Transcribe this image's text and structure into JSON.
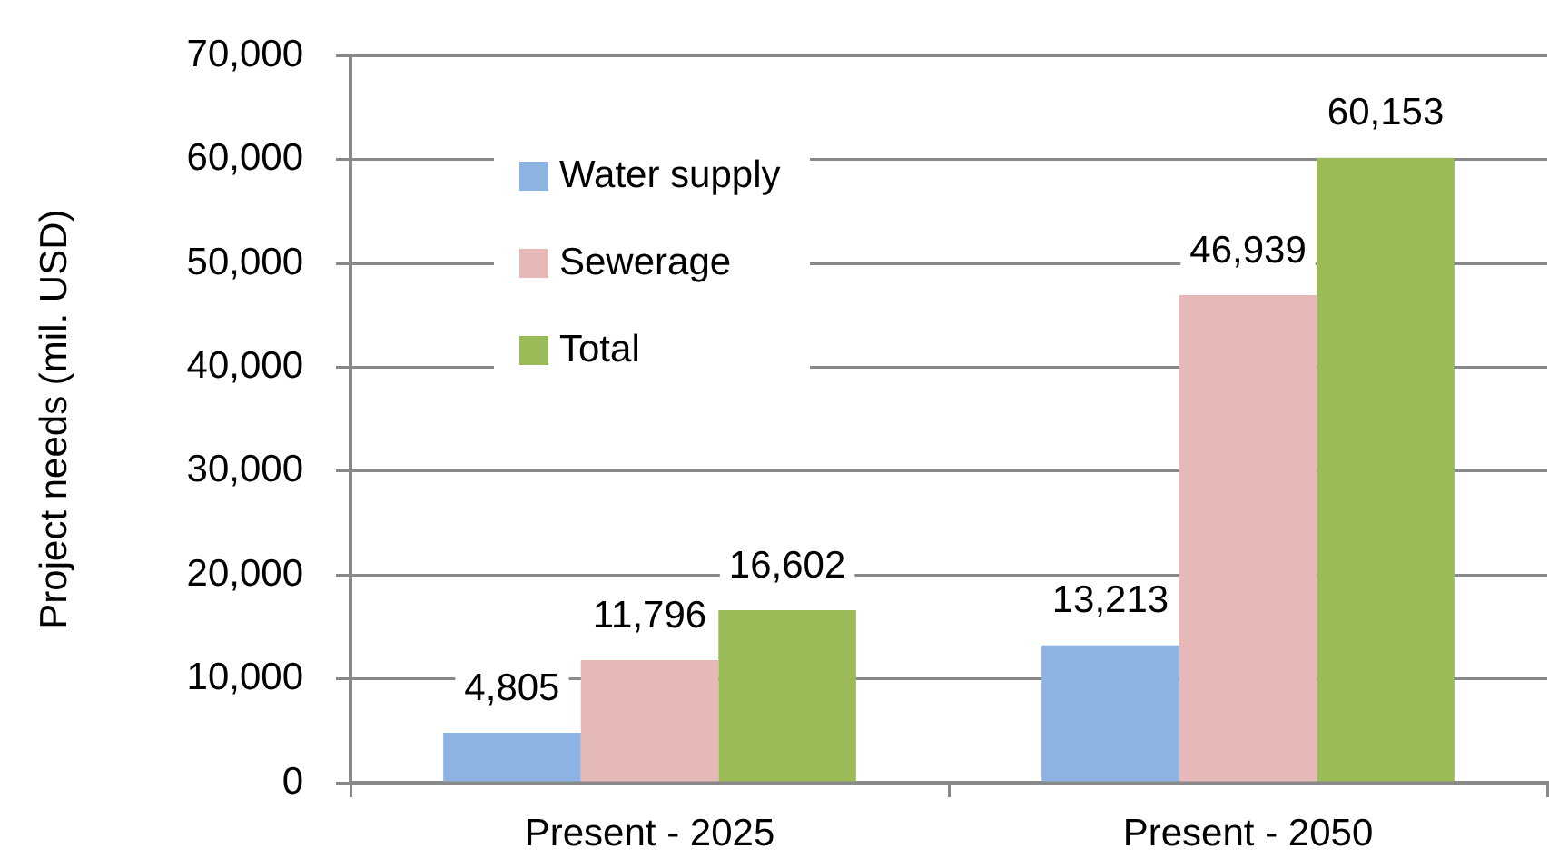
{
  "chart_data": {
    "type": "bar",
    "ylabel": "Project needs (mil. USD)",
    "categories": [
      "Present - 2025",
      "Present - 2050"
    ],
    "series": [
      {
        "name": "Water supply",
        "color": "#8db3e2",
        "values": [
          4805,
          13213
        ],
        "value_labels": [
          "4,805",
          "13,213"
        ]
      },
      {
        "name": "Sewerage",
        "color": "#e6b9b8",
        "values": [
          11796,
          46939
        ],
        "value_labels": [
          "11,796",
          "46,939"
        ]
      },
      {
        "name": "Total",
        "color": "#9bbb59",
        "values": [
          16602,
          60153
        ],
        "value_labels": [
          "16,602",
          "60,153"
        ]
      }
    ],
    "ylim": [
      0,
      70000
    ],
    "yticks": [
      {
        "value": 0,
        "label": "0"
      },
      {
        "value": 10000,
        "label": "10,000"
      },
      {
        "value": 20000,
        "label": "20,000"
      },
      {
        "value": 30000,
        "label": "30,000"
      },
      {
        "value": 40000,
        "label": "40,000"
      },
      {
        "value": 50000,
        "label": "50,000"
      },
      {
        "value": 60000,
        "label": "60,000"
      },
      {
        "value": 70000,
        "label": "70,000"
      }
    ],
    "grid": "y",
    "legend": "top left"
  }
}
